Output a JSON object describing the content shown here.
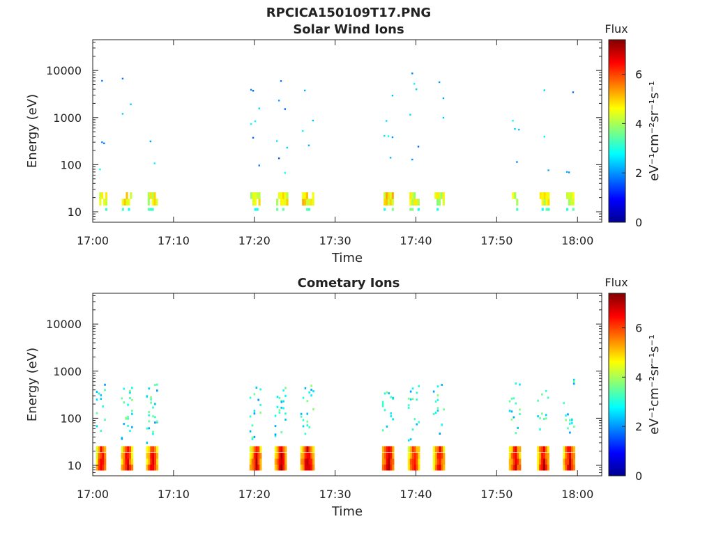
{
  "figure": {
    "title": "RPCICA150109T17.PNG"
  },
  "chart_data": [
    {
      "type": "heatmap",
      "title": "Solar Wind Ions",
      "xlabel": "Time",
      "ylabel": "Energy (eV)",
      "y_scale": "log",
      "xlim": [
        "17:00",
        "18:03"
      ],
      "ylim": [
        6,
        45000
      ],
      "x_ticks": [
        "17:00",
        "17:10",
        "17:20",
        "17:30",
        "17:40",
        "17:50",
        "18:00"
      ],
      "y_ticks": [
        "10",
        "100",
        "1000",
        "10000"
      ],
      "colorbar": {
        "title": "Flux",
        "label": "eV⁻¹cm⁻²sr⁻¹s⁻¹",
        "range": [
          0,
          7.4
        ],
        "ticks": [
          "0",
          "2",
          "4",
          "6"
        ],
        "colormap": "jet"
      },
      "bursts": [
        {
          "start": "17:00.8",
          "end": "17:01.6",
          "low_flux": 4.6
        },
        {
          "start": "17:03.6",
          "end": "17:04.8",
          "low_flux": 4.8
        },
        {
          "start": "17:06.8",
          "end": "17:08.0",
          "low_flux": 4.6
        },
        {
          "start": "17:19.5",
          "end": "17:20.6",
          "low_flux": 4.7
        },
        {
          "start": "17:22.7",
          "end": "17:24.0",
          "low_flux": 4.7
        },
        {
          "start": "17:25.9",
          "end": "17:27.3",
          "low_flux": 4.8
        },
        {
          "start": "17:36.0",
          "end": "17:37.2",
          "low_flux": 4.9
        },
        {
          "start": "17:39.2",
          "end": "17:40.4",
          "low_flux": 4.5
        },
        {
          "start": "17:42.3",
          "end": "17:43.5",
          "low_flux": 4.5
        },
        {
          "start": "17:51.9",
          "end": "17:52.9",
          "low_flux": 4.4
        },
        {
          "start": "17:55.3",
          "end": "17:56.4",
          "low_flux": 4.6
        },
        {
          "start": "17:58.6",
          "end": "17:59.6",
          "low_flux": 4.5
        }
      ]
    },
    {
      "type": "heatmap",
      "title": "Cometary Ions",
      "xlabel": "Time",
      "ylabel": "Energy (eV)",
      "y_scale": "log",
      "xlim": [
        "17:00",
        "18:03"
      ],
      "ylim": [
        6,
        45000
      ],
      "x_ticks": [
        "17:00",
        "17:10",
        "17:20",
        "17:30",
        "17:40",
        "17:50",
        "18:00"
      ],
      "y_ticks": [
        "10",
        "100",
        "1000",
        "10000"
      ],
      "colorbar": {
        "title": "Flux",
        "label": "eV⁻¹cm⁻²sr⁻¹s⁻¹",
        "range": [
          0,
          7.4
        ],
        "ticks": [
          "0",
          "2",
          "4",
          "6"
        ],
        "colormap": "jet"
      },
      "bursts": [
        {
          "start": "17:00.4",
          "end": "17:01.6",
          "low_flux": 6.3
        },
        {
          "start": "17:03.5",
          "end": "17:04.8",
          "low_flux": 6.4
        },
        {
          "start": "17:06.6",
          "end": "17:08.0",
          "low_flux": 6.3
        },
        {
          "start": "17:19.4",
          "end": "17:20.8",
          "low_flux": 6.4
        },
        {
          "start": "17:22.5",
          "end": "17:24.0",
          "low_flux": 6.5
        },
        {
          "start": "17:25.7",
          "end": "17:27.3",
          "low_flux": 6.6
        },
        {
          "start": "17:35.8",
          "end": "17:37.2",
          "low_flux": 6.6
        },
        {
          "start": "17:39.0",
          "end": "17:40.3",
          "low_flux": 6.3
        },
        {
          "start": "17:42.1",
          "end": "17:43.5",
          "low_flux": 6.2
        },
        {
          "start": "17:51.5",
          "end": "17:52.9",
          "low_flux": 6.3
        },
        {
          "start": "17:55.0",
          "end": "17:56.4",
          "low_flux": 6.4
        },
        {
          "start": "17:58.2",
          "end": "17:59.6",
          "low_flux": 6.5
        }
      ]
    }
  ]
}
